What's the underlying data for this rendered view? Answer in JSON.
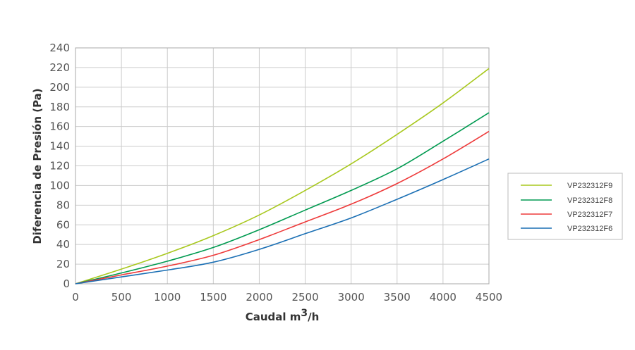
{
  "chart_data": {
    "type": "line",
    "title": "",
    "xlabel": "Caudal m",
    "xlabel_sup": "3",
    "xlabel_suffix": "/h",
    "ylabel": "Diferencia de Presión  (Pa)",
    "xlim": [
      0,
      4500
    ],
    "ylim": [
      0,
      240
    ],
    "xticks": [
      0,
      500,
      1000,
      1500,
      2000,
      2500,
      3000,
      3500,
      4000,
      4500
    ],
    "yticks": [
      0,
      20,
      40,
      60,
      80,
      100,
      120,
      140,
      160,
      180,
      200,
      220,
      240
    ],
    "grid": true,
    "legend_position": "right",
    "x": [
      0,
      500,
      1000,
      1500,
      2000,
      2500,
      3000,
      3500,
      4000,
      4500
    ],
    "series": [
      {
        "name": "VP232312F9",
        "color": "#a8c81e",
        "values": [
          0,
          15,
          31,
          49,
          70,
          95,
          122,
          152,
          184,
          219
        ]
      },
      {
        "name": "VP232312F8",
        "color": "#009a50",
        "values": [
          0,
          11,
          23,
          37,
          55,
          75,
          95,
          117,
          145,
          174
        ]
      },
      {
        "name": "VP232312F7",
        "color": "#ee3a3a",
        "values": [
          0,
          9,
          18,
          29,
          45,
          63,
          81,
          102,
          127,
          155
        ]
      },
      {
        "name": "VP232312F6",
        "color": "#1a6fb4",
        "values": [
          0,
          7,
          14,
          22,
          35,
          51,
          67,
          86,
          106,
          127
        ]
      }
    ]
  }
}
